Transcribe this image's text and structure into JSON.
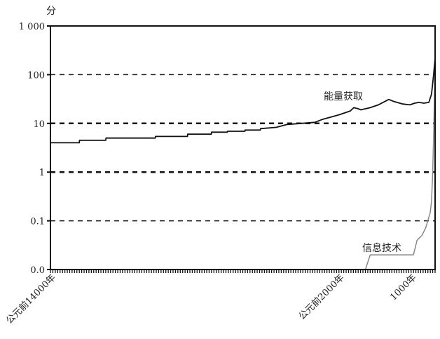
{
  "chart_data": {
    "type": "line",
    "ylabel": "分",
    "yscale": "log",
    "ylim": [
      0.01,
      1000
    ],
    "yticks": [
      {
        "value": 1000,
        "label": "1 000"
      },
      {
        "value": 100,
        "label": "100"
      },
      {
        "value": 10,
        "label": "10"
      },
      {
        "value": 1,
        "label": "1"
      },
      {
        "value": 0.1,
        "label": "0.1"
      },
      {
        "value": 0.01,
        "label": "0.0"
      }
    ],
    "xlim": [
      -14000,
      2000
    ],
    "xticks": [
      {
        "value": -14000,
        "label": "公元前14000年"
      },
      {
        "value": -2000,
        "label": "公元前2000年"
      },
      {
        "value": 1000,
        "label": "1000年"
      }
    ],
    "grid": "dashed horizontal at decades",
    "colors": {
      "energy": "#111111",
      "information": "#888888",
      "grid": "#111111"
    },
    "series": [
      {
        "name": "能量获取",
        "x": [
          -14000,
          -12800,
          -12790,
          -11700,
          -11690,
          -9640,
          -9630,
          -8300,
          -8290,
          -7310,
          -7300,
          -6640,
          -6630,
          -5910,
          -5900,
          -5270,
          -5260,
          -4600,
          -4150,
          -3570,
          -3000,
          -2700,
          -2000,
          -1530,
          -1380,
          -1200,
          -1090,
          -700,
          -360,
          75,
          300,
          660,
          950,
          1150,
          1330,
          1530,
          1740,
          1850,
          1940,
          2000
        ],
        "values": [
          4.0,
          4.0,
          4.5,
          4.5,
          5.0,
          5.0,
          5.4,
          5.4,
          6.0,
          6.0,
          6.6,
          6.6,
          6.9,
          6.9,
          7.3,
          7.3,
          7.8,
          8.3,
          9.5,
          10,
          10.5,
          12,
          15,
          18,
          21,
          20,
          19,
          21,
          24,
          31,
          28,
          25,
          24,
          26,
          27,
          26,
          27,
          40,
          100,
          220
        ]
      },
      {
        "name": "信息技术",
        "x": [
          -14000,
          -900,
          -700,
          1100,
          1250,
          1450,
          1600,
          1700,
          1800,
          1850,
          1900,
          1950,
          2000
        ],
        "values": [
          0.01,
          0.01,
          0.02,
          0.02,
          0.04,
          0.05,
          0.07,
          0.1,
          0.15,
          0.25,
          1,
          10,
          200
        ]
      }
    ]
  }
}
